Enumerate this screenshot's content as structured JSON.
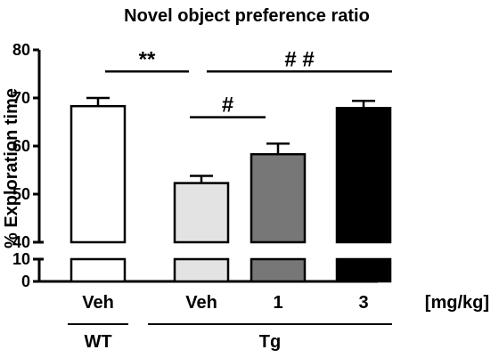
{
  "chart_data": {
    "type": "bar",
    "title": "Novel object preference ratio",
    "ylabel": "% Exploration time",
    "xlabel": "",
    "ylim": [
      0,
      80
    ],
    "y_break": [
      10,
      40
    ],
    "yticks": [
      0,
      10,
      40,
      50,
      60,
      70,
      80
    ],
    "categories": [
      "Veh",
      "Veh",
      "1",
      "3"
    ],
    "unit_label": "[mg/kg]",
    "groups": [
      {
        "label": "WT",
        "categories": [
          0
        ]
      },
      {
        "label": "Tg",
        "categories": [
          1,
          2,
          3
        ]
      }
    ],
    "values": [
      68.3,
      52.3,
      58.3,
      67.9
    ],
    "errors": [
      1.7,
      1.5,
      2.2,
      1.5
    ],
    "bar_colors": [
      "#ffffff",
      "#e3e3e3",
      "#777777",
      "#000000"
    ],
    "annotations": [
      {
        "text": "**",
        "from": 0,
        "to": 1,
        "y": 75.5
      },
      {
        "text": "##",
        "from": 1,
        "to": 3,
        "y": 75.5
      },
      {
        "text": "#",
        "from": 1,
        "to": 2,
        "y": 66.0
      }
    ]
  }
}
